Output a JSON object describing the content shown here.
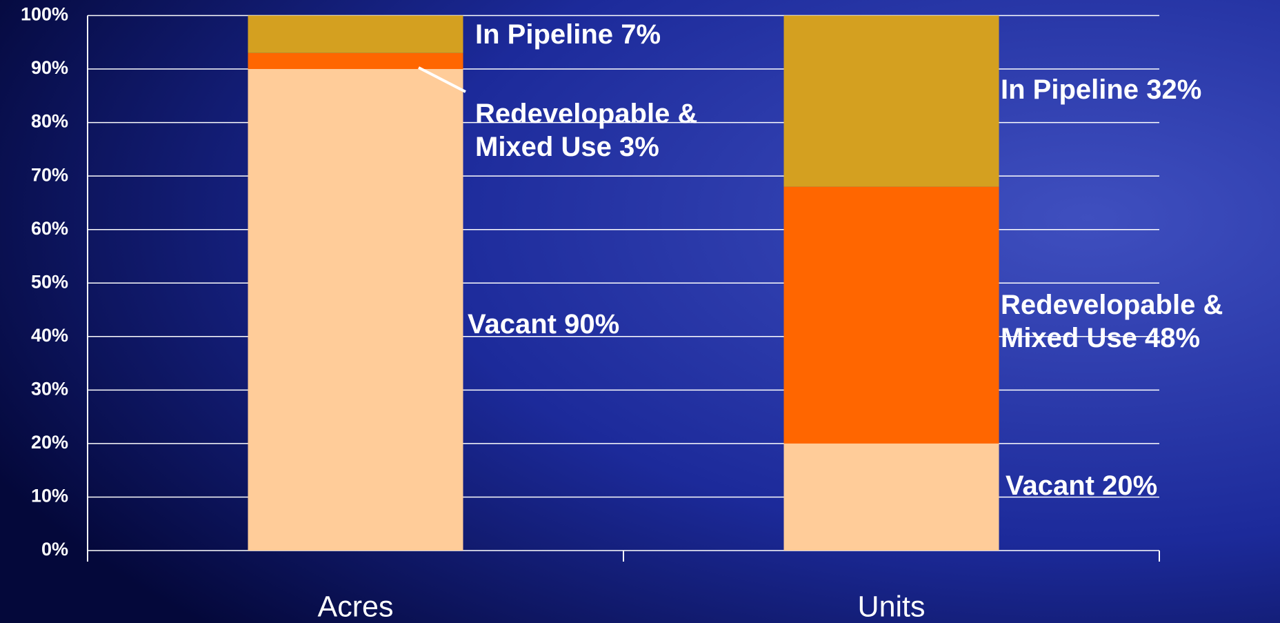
{
  "chart_data": {
    "type": "stacked_bar",
    "categories": [
      "Acres",
      "Units"
    ],
    "series": [
      {
        "name": "Vacant",
        "color": "#ffcc99",
        "values": [
          90,
          20
        ],
        "value_labels": [
          "90%",
          "20%"
        ]
      },
      {
        "name": "Redevelopable & Mixed Use",
        "color": "#ff6600",
        "values": [
          3,
          48
        ],
        "value_labels": [
          "3%",
          "48%"
        ]
      },
      {
        "name": "In Pipeline",
        "color": "#d4a020",
        "values": [
          7,
          32
        ],
        "value_labels": [
          "7%",
          "32%"
        ]
      }
    ],
    "ylim": [
      0,
      100
    ],
    "yticks": [
      {
        "value": 0,
        "label": "0%"
      },
      {
        "value": 10,
        "label": "10%"
      },
      {
        "value": 20,
        "label": "20%"
      },
      {
        "value": 30,
        "label": "30%"
      },
      {
        "value": 40,
        "label": "40%"
      },
      {
        "value": 50,
        "label": "50%"
      },
      {
        "value": 60,
        "label": "60%"
      },
      {
        "value": 70,
        "label": "70%"
      },
      {
        "value": 80,
        "label": "80%"
      },
      {
        "value": 90,
        "label": "90%"
      },
      {
        "value": 100,
        "label": "100%"
      }
    ],
    "grid": true
  }
}
